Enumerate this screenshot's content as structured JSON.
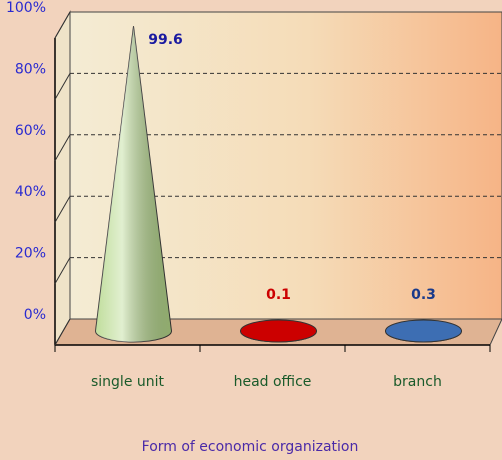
{
  "chart_data": {
    "type": "cone",
    "categories": [
      "single unit",
      "head office",
      "branch"
    ],
    "values": [
      99.6,
      0.1,
      0.3
    ],
    "colors": [
      "#b5d88a",
      "#cc0000",
      "#3d6eb3"
    ],
    "value_label_colors": [
      "#1a1aa0",
      "#cc0000",
      "#1a3a8a"
    ],
    "x_label": "Form of economic organization",
    "ylim": [
      0,
      100
    ],
    "yticks": [
      {
        "value": 0,
        "label": "0%"
      },
      {
        "value": 20,
        "label": "20%"
      },
      {
        "value": 40,
        "label": "40%"
      },
      {
        "value": 60,
        "label": "60%"
      },
      {
        "value": 80,
        "label": "80%"
      },
      {
        "value": 100,
        "label": "100%"
      }
    ],
    "grid": true
  }
}
